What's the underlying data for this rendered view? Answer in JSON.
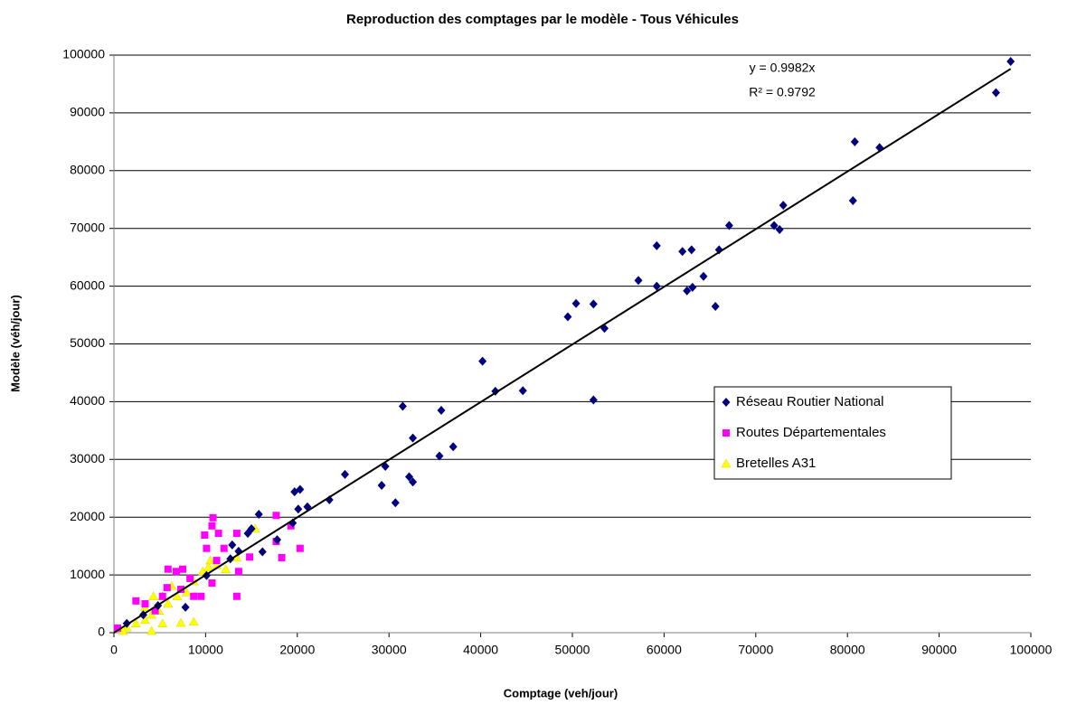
{
  "chart_data": {
    "type": "scatter",
    "title": "Reproduction des comptages par le modèle - Tous Véhicules",
    "x_label": "Comptage (veh/jour)",
    "y_label": "Modèle (véh/jour)",
    "xlim": [
      0,
      100000
    ],
    "ylim": [
      0,
      100000
    ],
    "xticks": [
      0,
      10000,
      20000,
      30000,
      40000,
      50000,
      60000,
      70000,
      80000,
      90000,
      100000
    ],
    "yticks": [
      0,
      10000,
      20000,
      30000,
      40000,
      50000,
      60000,
      70000,
      80000,
      90000,
      100000
    ],
    "grid": true,
    "legend": "right",
    "trendline": {
      "slope": 0.9982,
      "label": "y = 0.9982x",
      "r2_label": "R² = 0.9792"
    },
    "series": [
      {
        "name": "Réseau Routier National",
        "color": "#000080",
        "marker": "diamond",
        "x": [
          97800,
          96200,
          80800,
          83500,
          80600,
          73000,
          72600,
          72000,
          67100,
          66000,
          65600,
          64300,
          63000,
          62000,
          63100,
          62500,
          59200,
          59200,
          57200,
          50400,
          49500,
          52300,
          53500,
          52300,
          44600,
          41600,
          40200,
          37000,
          35500,
          35700,
          31500,
          32600,
          32200,
          32600,
          30700,
          29600,
          29200,
          25200,
          23500,
          21100,
          20300,
          19700,
          20100,
          19500,
          17800,
          15800,
          16200,
          15000,
          14600,
          13600,
          12700,
          12900,
          10100,
          7800,
          4800,
          3200,
          1400
        ],
        "values": [
          98900,
          93500,
          85000,
          84000,
          74800,
          74000,
          69800,
          70500,
          70500,
          66300,
          56500,
          61700,
          66300,
          66000,
          59800,
          59200,
          67000,
          60000,
          61000,
          57000,
          54700,
          56900,
          52700,
          40300,
          41900,
          41800,
          47000,
          32200,
          30600,
          38500,
          39200,
          33700,
          27000,
          26100,
          22500,
          28800,
          25500,
          27400,
          23000,
          21800,
          24800,
          24400,
          21400,
          19000,
          16100,
          20500,
          14000,
          18000,
          17200,
          14100,
          12800,
          15200,
          9900,
          4400,
          4700,
          3100,
          1600
        ]
      },
      {
        "name": "Routes Départementales",
        "color": "#ff00ff",
        "marker": "square",
        "x": [
          10800,
          10700,
          9900,
          11400,
          13400,
          17700,
          18300,
          20300,
          19300,
          17700,
          13400,
          13600,
          14800,
          12000,
          10100,
          11200,
          7500,
          6800,
          5900,
          7300,
          8300,
          5300,
          3400,
          2400,
          4500,
          400,
          8700,
          9500,
          10700,
          5800
        ],
        "values": [
          19900,
          18500,
          16900,
          17200,
          17200,
          15800,
          13000,
          14600,
          18500,
          20300,
          6300,
          10600,
          13100,
          14600,
          14600,
          12500,
          11000,
          10600,
          11000,
          7500,
          9400,
          6300,
          5000,
          5500,
          3800,
          800,
          6300,
          6300,
          8600,
          7800
        ]
      },
      {
        "name": "Bretelles A31",
        "color": "#ffff00",
        "marker": "triangle",
        "x": [
          15400,
          13400,
          11200,
          10500,
          9700,
          8700,
          7900,
          6900,
          5900,
          4900,
          4100,
          3400,
          2400,
          1400,
          1000,
          7300,
          8700,
          4100,
          5300,
          3400,
          6300,
          5300,
          10300,
          12200,
          4300
        ],
        "values": [
          18000,
          13000,
          11700,
          12500,
          10600,
          8900,
          7000,
          6300,
          5000,
          3800,
          3100,
          2200,
          1600,
          900,
          300,
          1700,
          1900,
          300,
          1600,
          4400,
          8100,
          6300,
          11300,
          11000,
          6300
        ]
      }
    ]
  }
}
